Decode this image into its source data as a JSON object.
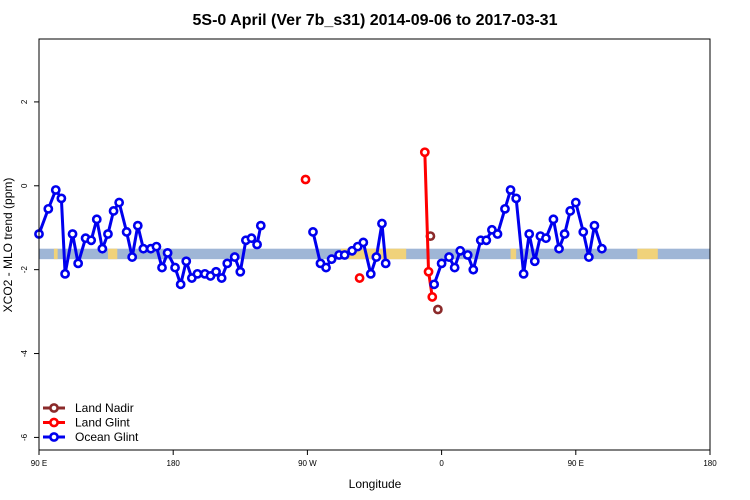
{
  "chart_data": {
    "type": "line",
    "title": "5S-0 April (Ver 7b_s31)   2014-09-06 to 2017-03-31",
    "xlabel": "Longitude",
    "ylabel": "XCO2 - MLO trend (ppm)",
    "xlim": [
      90,
      450
    ],
    "ylim": [
      -6.3,
      3.5
    ],
    "x_ticks": [
      {
        "value": 90,
        "label": "90 E"
      },
      {
        "value": 162,
        "label": "180"
      },
      {
        "value": 234,
        "label": "90 W"
      },
      {
        "value": 306,
        "label": "0"
      },
      {
        "value": 378,
        "label": "90 E"
      },
      {
        "value": 450,
        "label": "180"
      }
    ],
    "y_ticks": [
      {
        "value": -6,
        "label": "-6"
      },
      {
        "value": -4,
        "label": "-4"
      },
      {
        "value": -2,
        "label": "-2"
      },
      {
        "value": 0,
        "label": "0"
      },
      {
        "value": 2,
        "label": "2"
      }
    ],
    "grid": false,
    "legend_position": "bottom-left",
    "background_band": {
      "y_range": [
        -1.75,
        -1.5
      ],
      "ocean_color": "#9fb6d6",
      "land_color": "#f0d27a",
      "land_segments": [
        [
          98,
          100
        ],
        [
          127,
          132
        ],
        [
          252,
          287
        ],
        [
          343,
          346
        ],
        [
          411,
          422
        ]
      ]
    },
    "series": [
      {
        "name": "Land Nadir",
        "color": "#8b2a2a",
        "connect": false,
        "points": [
          [
            304,
            -2.95
          ],
          [
            300,
            -1.2
          ]
        ]
      },
      {
        "name": "Land Glint",
        "color": "#ff0000",
        "connect": true,
        "points": [
          [
            233,
            0.15
          ],
          [
            262,
            -2.2
          ],
          [
            297,
            0.8
          ],
          [
            299,
            -2.05
          ],
          [
            301,
            -2.65
          ]
        ]
      },
      {
        "name": "Ocean Glint",
        "color": "#0000ee",
        "connect": true,
        "points": [
          [
            90,
            -1.15
          ],
          [
            95,
            -0.55
          ],
          [
            99,
            -0.1
          ],
          [
            102,
            -0.3
          ],
          [
            104,
            -2.1
          ],
          [
            108,
            -1.15
          ],
          [
            111,
            -1.85
          ],
          [
            115,
            -1.25
          ],
          [
            118,
            -1.3
          ],
          [
            121,
            -0.8
          ],
          [
            124,
            -1.5
          ],
          [
            127,
            -1.15
          ],
          [
            130,
            -0.6
          ],
          [
            133,
            -0.4
          ],
          [
            137,
            -1.1
          ],
          [
            140,
            -1.7
          ],
          [
            143,
            -0.95
          ],
          [
            146,
            -1.5
          ],
          [
            150,
            -1.5
          ],
          [
            153,
            -1.45
          ],
          [
            156,
            -1.95
          ],
          [
            159,
            -1.6
          ],
          [
            163,
            -1.95
          ],
          [
            166,
            -2.35
          ],
          [
            169,
            -1.8
          ],
          [
            172,
            -2.2
          ],
          [
            175,
            -2.1
          ],
          [
            179,
            -2.1
          ],
          [
            182,
            -2.15
          ],
          [
            185,
            -2.05
          ],
          [
            188,
            -2.2
          ],
          [
            191,
            -1.85
          ],
          [
            195,
            -1.7
          ],
          [
            198,
            -2.05
          ],
          [
            201,
            -1.3
          ],
          [
            204,
            -1.25
          ],
          [
            207,
            -1.4
          ],
          [
            209,
            -0.95
          ],
          [
            237,
            -1.1
          ],
          [
            241,
            -1.85
          ],
          [
            244,
            -1.95
          ],
          [
            247,
            -1.75
          ],
          [
            251,
            -1.65
          ],
          [
            254,
            -1.65
          ],
          [
            258,
            -1.55
          ],
          [
            261,
            -1.45
          ],
          [
            264,
            -1.35
          ],
          [
            268,
            -2.1
          ],
          [
            271,
            -1.7
          ],
          [
            274,
            -0.9
          ],
          [
            276,
            -1.85
          ],
          [
            302,
            -2.35
          ],
          [
            306,
            -1.85
          ],
          [
            310,
            -1.7
          ],
          [
            313,
            -1.95
          ],
          [
            316,
            -1.55
          ],
          [
            320,
            -1.65
          ],
          [
            323,
            -2.0
          ],
          [
            327,
            -1.3
          ],
          [
            330,
            -1.3
          ],
          [
            333,
            -1.05
          ],
          [
            336,
            -1.15
          ],
          [
            340,
            -0.55
          ],
          [
            343,
            -0.1
          ],
          [
            346,
            -0.3
          ],
          [
            350,
            -2.1
          ],
          [
            353,
            -1.15
          ],
          [
            356,
            -1.8
          ],
          [
            359,
            -1.2
          ],
          [
            362,
            -1.25
          ],
          [
            366,
            -0.8
          ],
          [
            369,
            -1.5
          ],
          [
            372,
            -1.15
          ],
          [
            375,
            -0.6
          ],
          [
            378,
            -0.4
          ],
          [
            382,
            -1.1
          ],
          [
            385,
            -1.7
          ],
          [
            388,
            -0.95
          ],
          [
            392,
            -1.5
          ]
        ]
      }
    ]
  }
}
